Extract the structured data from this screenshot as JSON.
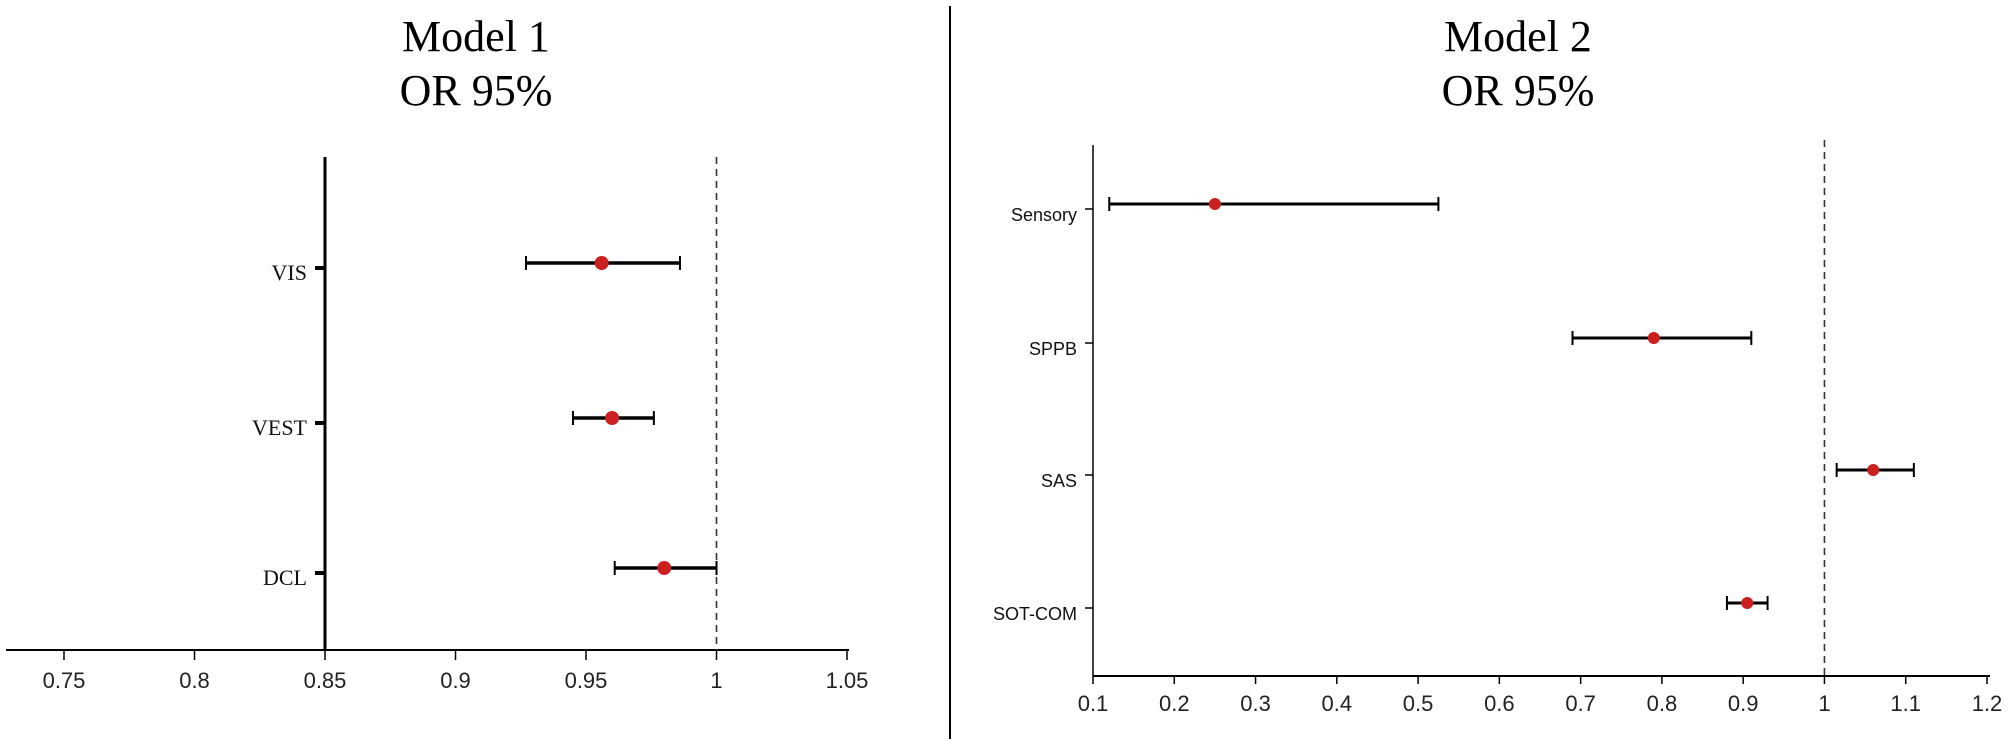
{
  "chart_data": [
    {
      "type": "forest",
      "title": "Model 1",
      "subtitle": "OR 95%",
      "xlabel": "",
      "ylabel": "",
      "xlim": [
        0.73,
        1.06
      ],
      "xticks": [
        0.75,
        0.8,
        0.85,
        0.9,
        0.95,
        1,
        1.05
      ],
      "xtick_labels": [
        "0.75",
        "0.8",
        "0.85",
        "0.9",
        "0.95",
        "1",
        "1.05"
      ],
      "reference_line": 1,
      "y_axis_at": 0.85,
      "categories": [
        "VIS",
        "VEST",
        "DCL"
      ],
      "estimates": [
        0.956,
        0.96,
        0.98
      ],
      "lower": [
        0.927,
        0.945,
        0.961
      ],
      "upper": [
        0.986,
        0.976,
        1.0
      ],
      "marker_color": "#cc1f1f",
      "grid": false,
      "legend": "none"
    },
    {
      "type": "forest",
      "title": "Model 2",
      "subtitle": "OR 95%",
      "xlabel": "",
      "ylabel": "",
      "xlim": [
        0.1,
        1.2
      ],
      "xticks": [
        0.1,
        0.2,
        0.3,
        0.4,
        0.5,
        0.6,
        0.7,
        0.8,
        0.9,
        1,
        1.1,
        1.2
      ],
      "xtick_labels": [
        "0.1",
        "0.2",
        "0.3",
        "0.4",
        "0.5",
        "0.6",
        "0.7",
        "0.8",
        "0.9",
        "1",
        "1.1",
        "1.2"
      ],
      "reference_line": 1,
      "categories": [
        "Sensory",
        "SPPB",
        "SAS",
        "SOT-COM"
      ],
      "estimates": [
        0.25,
        0.79,
        1.06,
        0.905
      ],
      "lower": [
        0.12,
        0.69,
        1.015,
        0.88
      ],
      "upper": [
        0.525,
        0.91,
        1.11,
        0.93
      ],
      "marker_color": "#cc1f1f",
      "grid": false,
      "legend": "none"
    }
  ]
}
